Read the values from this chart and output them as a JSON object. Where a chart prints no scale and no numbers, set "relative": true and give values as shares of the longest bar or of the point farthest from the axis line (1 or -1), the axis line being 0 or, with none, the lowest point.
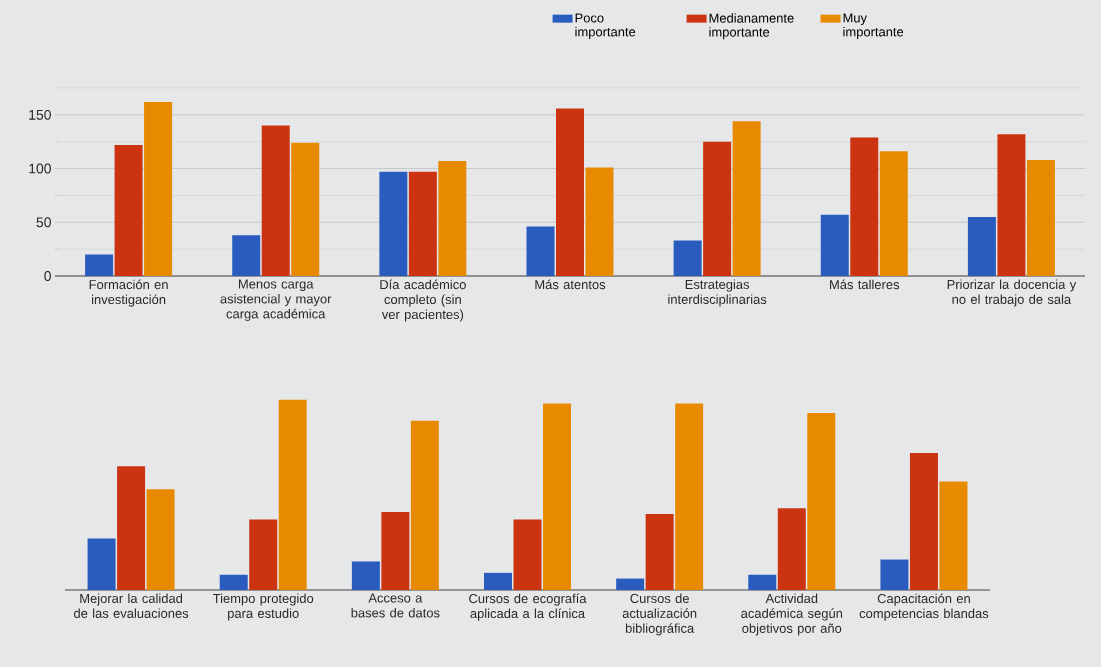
{
  "chart_data": [
    {
      "type": "bar",
      "categories": [
        "Formación en investigación",
        "Menos carga asistencial y mayor carga académica",
        "Día académico completo (sin ver pacientes)",
        "Más atentos",
        "Estrategias interdisciplinarias",
        "Más talleres",
        "Priorizar la docencia y no el trabajo de sala"
      ],
      "series": [
        {
          "name": "Poco importante",
          "color": "#2a5cbf",
          "values": [
            20,
            38,
            97,
            46,
            33,
            57,
            55
          ]
        },
        {
          "name": "Medianamente importante",
          "color": "#cc3311",
          "values": [
            122,
            140,
            97,
            156,
            125,
            129,
            132
          ]
        },
        {
          "name": "Muy importante",
          "color": "#e88a00",
          "values": [
            162,
            124,
            107,
            101,
            144,
            116,
            108
          ]
        }
      ],
      "ylim": [
        0,
        175
      ],
      "yticks": [
        0,
        50,
        100,
        150
      ],
      "grid": "y",
      "legend": "top right"
    },
    {
      "type": "bar",
      "categories": [
        "Mejorar la calidad de las evaluaciones",
        "Tiempo protegido para estudio",
        "Acceso a bases de datos",
        "Cursos de ecografía aplicada a la clínica",
        "Cursos de actualización bibliográfica",
        "Actividad académica según objetivos por año",
        "Capacitación en competencias blandas"
      ],
      "series": [
        {
          "color": "#2a5cbf",
          "values": [
            0.27,
            0.08,
            0.15,
            0.09,
            0.06,
            0.08,
            0.16
          ]
        },
        {
          "color": "#cc3311",
          "values": [
            0.65,
            0.37,
            0.41,
            0.37,
            0.4,
            0.43,
            0.72
          ]
        },
        {
          "color": "#e88a00",
          "values": [
            0.53,
            1.0,
            0.89,
            0.98,
            0.98,
            0.93,
            0.57
          ]
        }
      ],
      "relative": true
    }
  ]
}
